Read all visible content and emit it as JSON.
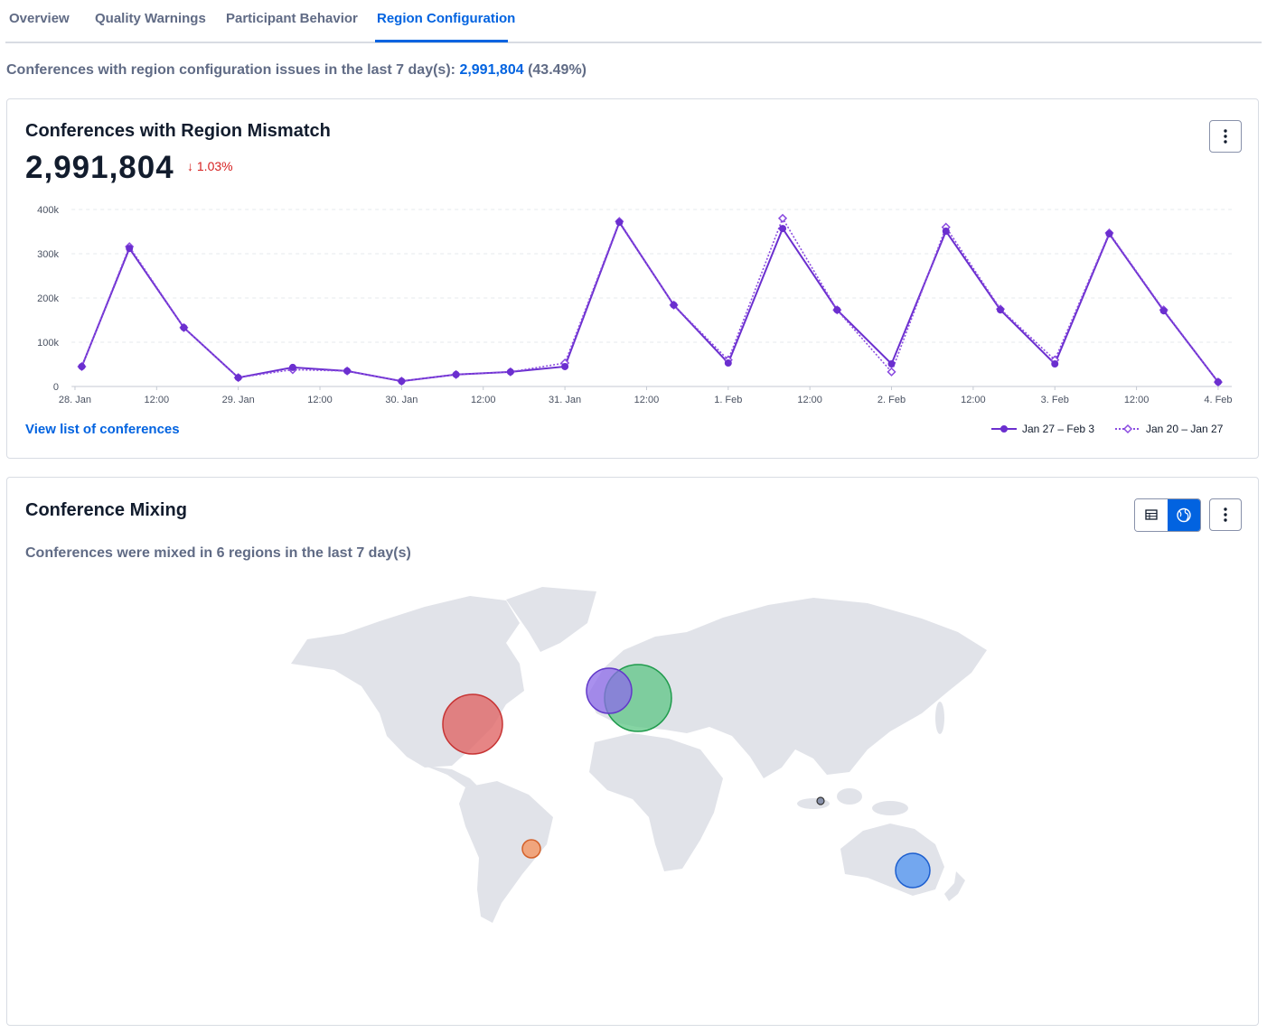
{
  "tabs": [
    "Overview",
    "Quality Warnings",
    "Participant Behavior",
    "Region Configuration"
  ],
  "summary": {
    "text": "Conferences with region configuration issues in the last 7 day(s):",
    "count": "2,991,804",
    "share": "(43.49%)"
  },
  "mismatch_card": {
    "title": "Conferences with Region Mismatch",
    "total": "2,991,804",
    "change": "1.03%",
    "link": "View list of conferences"
  },
  "chart_data": {
    "type": "line",
    "x": [
      1,
      8,
      16,
      24,
      32,
      40,
      48,
      56,
      64,
      72,
      80,
      88,
      96,
      104,
      112,
      120,
      128,
      136,
      144,
      152,
      160,
      168
    ],
    "xlim": [
      -0.5,
      170
    ],
    "xticks": [
      {
        "value": 0,
        "label": "28. Jan"
      },
      {
        "value": 12,
        "label": "12:00"
      },
      {
        "value": 24,
        "label": "29. Jan"
      },
      {
        "value": 36,
        "label": "12:00"
      },
      {
        "value": 48,
        "label": "30. Jan"
      },
      {
        "value": 60,
        "label": "12:00"
      },
      {
        "value": 72,
        "label": "31. Jan"
      },
      {
        "value": 84,
        "label": "12:00"
      },
      {
        "value": 96,
        "label": "1. Feb"
      },
      {
        "value": 108,
        "label": "12:00"
      },
      {
        "value": 120,
        "label": "2. Feb"
      },
      {
        "value": 132,
        "label": "12:00"
      },
      {
        "value": 144,
        "label": "3. Feb"
      },
      {
        "value": 156,
        "label": "12:00"
      },
      {
        "value": 168,
        "label": "4. Feb"
      }
    ],
    "ylim": [
      0,
      400000
    ],
    "yticks": [
      0,
      {
        "value": 100000,
        "label": "100k"
      },
      {
        "value": 200000,
        "label": "200k"
      },
      {
        "value": 300000,
        "label": "300k"
      },
      {
        "value": 400000,
        "label": "400k"
      }
    ],
    "grid": true,
    "legend": "bottom-right",
    "series": [
      {
        "name": "Jan 27 – Feb 3",
        "color": "#6b2fcf",
        "marker": "circle",
        "dash": "solid",
        "values": [
          45000,
          312000,
          133000,
          20000,
          43000,
          35000,
          12000,
          27000,
          33000,
          45000,
          371000,
          184000,
          53000,
          357000,
          173000,
          51000,
          351000,
          173000,
          51000,
          345000,
          171000,
          10000
        ]
      },
      {
        "name": "Jan 20 – Jan 27",
        "color": "#8a4be0",
        "marker": "diamond",
        "dash": "dotted",
        "values": [
          45000,
          316000,
          133000,
          20000,
          38000,
          35000,
          12000,
          27000,
          33000,
          53000,
          373000,
          184000,
          60000,
          380000,
          173000,
          33000,
          360000,
          175000,
          60000,
          347000,
          173000,
          10000
        ]
      }
    ]
  },
  "mixing_card": {
    "title": "Conference Mixing",
    "subtitle": "Conferences were mixed in 6 regions in the last 7 day(s)"
  }
}
